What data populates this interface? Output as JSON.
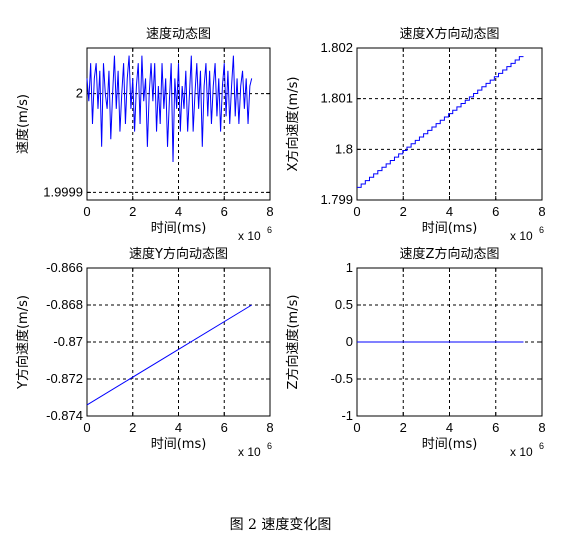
{
  "caption": "图 2  速度变化图",
  "colors": {
    "series": "#0000ff",
    "axis": "#000000",
    "background": "#ffffff"
  },
  "chart_data": [
    {
      "type": "line",
      "title": "速度动态图",
      "xlabel": "时间(ms)",
      "ylabel": "速度(m/s)",
      "x_multiplier_label": "x 10",
      "x_multiplier_exp": "6",
      "xlim": [
        0,
        8
      ],
      "ylim": [
        1.99988,
        2.00008
      ],
      "xticks": [
        "0",
        "2",
        "4",
        "6",
        "8"
      ],
      "yticks": [
        {
          "value": 1.99989,
          "label": "1.9999"
        },
        {
          "value": 2.00002,
          "label": "2"
        }
      ],
      "grid": true,
      "series": [
        {
          "x": [
            0.0,
            0.08,
            0.16,
            0.24,
            0.32,
            0.4,
            0.48,
            0.56,
            0.64,
            0.72,
            0.8,
            0.88,
            0.96,
            1.04,
            1.12,
            1.2,
            1.28,
            1.36,
            1.44,
            1.52,
            1.6,
            1.68,
            1.76,
            1.84,
            1.92,
            2.0,
            2.08,
            2.16,
            2.24,
            2.32,
            2.4,
            2.48,
            2.56,
            2.64,
            2.72,
            2.8,
            2.88,
            2.96,
            3.04,
            3.12,
            3.2,
            3.28,
            3.36,
            3.44,
            3.52,
            3.6,
            3.68,
            3.76,
            3.84,
            3.92,
            4.0,
            4.08,
            4.16,
            4.24,
            4.32,
            4.4,
            4.48,
            4.56,
            4.64,
            4.72,
            4.8,
            4.88,
            4.96,
            5.04,
            5.12,
            5.2,
            5.28,
            5.36,
            5.44,
            5.52,
            5.6,
            5.68,
            5.76,
            5.84,
            5.92,
            6.0,
            6.08,
            6.16,
            6.24,
            6.32,
            6.4,
            6.48,
            6.56,
            6.64,
            6.72,
            6.8,
            6.88,
            6.96,
            7.04,
            7.12,
            7.2
          ],
          "y": [
            2.00004,
            2.00001,
            2.00006,
            1.99998,
            2.00004,
            2.00006,
            2.0,
            2.00005,
            1.99995,
            2.00006,
            2.00002,
            2.0,
            2.00005,
            1.99996,
            2.00002,
            2.00007,
            2.0,
            2.00005,
            1.99997,
            2.00002,
            2.00006,
            1.99998,
            2.00004,
            2.00007,
            2.0,
            2.00004,
            1.99997,
            2.00003,
            2.00006,
            1.99998,
            2.00007,
            2.00001,
            2.00004,
            1.99995,
            2.00002,
            2.00006,
            2.00001,
            2.00006,
            1.99997,
            2.00003,
            1.99998,
            2.00006,
            2.0,
            2.00004,
            1.99995,
            2.00001,
            2.00006,
            1.99993,
            2.00004,
            2.0,
            2.00006,
            1.99997,
            2.00003,
            2.0,
            2.00005,
            1.99997,
            2.00002,
            2.00007,
            1.99997,
            2.00002,
            2.00006,
            2.0,
            2.00005,
            1.99995,
            2.00003,
            2.00006,
            1.99999,
            2.00005,
            1.99998,
            2.00003,
            2.00006,
            1.99999,
            2.00004,
            1.99997,
            2.00003,
            2.00006,
            1.99999,
            2.00005,
            1.99998,
            2.00003,
            2.00007,
            1.99999,
            2.00004,
            1.99998,
            2.00003,
            2.00005,
            2.0,
            2.00004,
            1.99998,
            2.00003,
            2.00004
          ]
        }
      ]
    },
    {
      "type": "line",
      "title": "速度X方向动态图",
      "xlabel": "时间(ms)",
      "ylabel": "X方向速度(m/s)",
      "x_multiplier_label": "x 10",
      "x_multiplier_exp": "6",
      "xlim": [
        0,
        8
      ],
      "ylim": [
        1.799,
        1.802
      ],
      "xticks": [
        "0",
        "2",
        "4",
        "6",
        "8"
      ],
      "yticks": [
        {
          "value": 1.799,
          "label": "1.799"
        },
        {
          "value": 1.8,
          "label": "1.8"
        },
        {
          "value": 1.801,
          "label": "1.801"
        },
        {
          "value": 1.802,
          "label": "1.802"
        }
      ],
      "grid": true,
      "series": [
        {
          "x": [
            0,
            7.2
          ],
          "y": [
            1.79925,
            1.80183
          ],
          "steps": 40
        }
      ]
    },
    {
      "type": "line",
      "title": "速度Y方向动态图",
      "xlabel": "时间(ms)",
      "ylabel": "Y方向速度(m/s)",
      "x_multiplier_label": "x 10",
      "x_multiplier_exp": "6",
      "xlim": [
        0,
        8
      ],
      "ylim": [
        -0.874,
        -0.866
      ],
      "xticks": [
        "0",
        "2",
        "4",
        "6",
        "8"
      ],
      "yticks": [
        {
          "value": -0.874,
          "label": "-0.874"
        },
        {
          "value": -0.872,
          "label": "-0.872"
        },
        {
          "value": -0.87,
          "label": "-0.87"
        },
        {
          "value": -0.868,
          "label": "-0.868"
        },
        {
          "value": -0.866,
          "label": "-0.866"
        }
      ],
      "grid": true,
      "series": [
        {
          "x": [
            0,
            7.2
          ],
          "y": [
            -0.8734,
            -0.868
          ]
        }
      ]
    },
    {
      "type": "line",
      "title": "速度Z方向动态图",
      "xlabel": "时间(ms)",
      "ylabel": "Z方向速度(m/s)",
      "x_multiplier_label": "x 10",
      "x_multiplier_exp": "6",
      "xlim": [
        0,
        8
      ],
      "ylim": [
        -1,
        1
      ],
      "xticks": [
        "0",
        "2",
        "4",
        "6",
        "8"
      ],
      "yticks": [
        {
          "value": -1,
          "label": "-1"
        },
        {
          "value": -0.5,
          "label": "-0.5"
        },
        {
          "value": 0,
          "label": "0"
        },
        {
          "value": 0.5,
          "label": "0.5"
        },
        {
          "value": 1,
          "label": "1"
        }
      ],
      "grid": true,
      "series": [
        {
          "x": [
            0,
            7.2
          ],
          "y": [
            0,
            0
          ]
        }
      ]
    }
  ]
}
